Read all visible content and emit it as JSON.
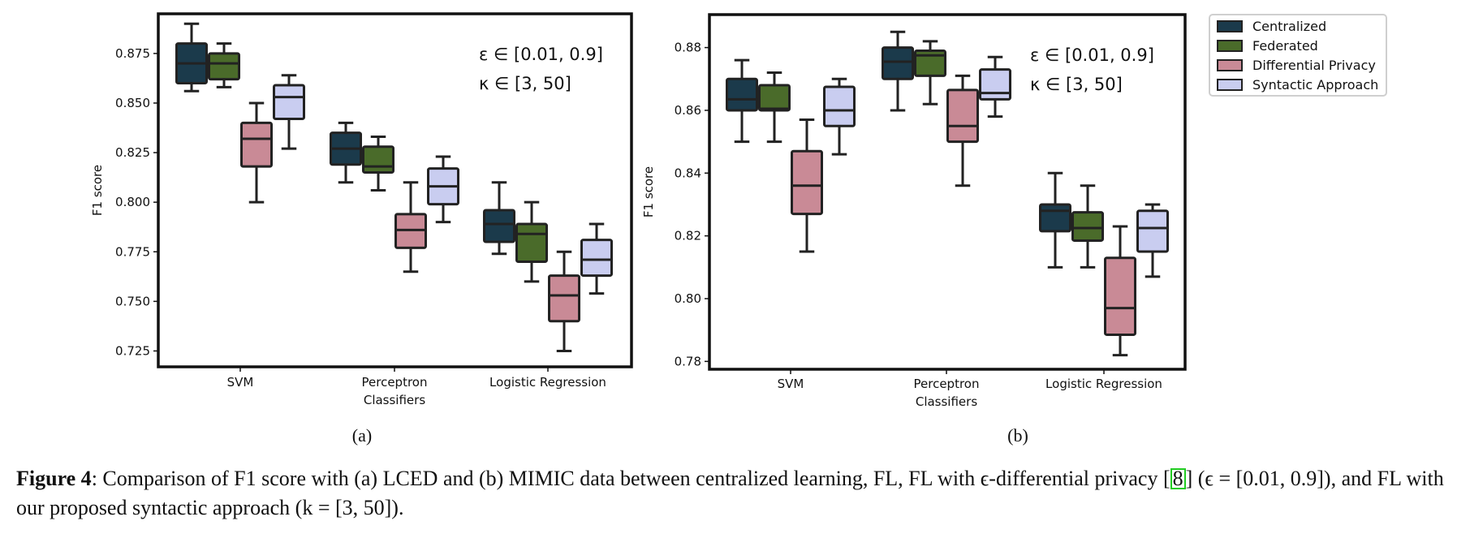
{
  "chart_data": [
    {
      "type": "box",
      "sublabel": "(a)",
      "ylabel": "F1 score",
      "ylim": [
        0.717,
        0.895
      ],
      "yticks": [
        "0.725",
        "0.750",
        "0.775",
        "0.800",
        "0.825",
        "0.850",
        "0.875"
      ],
      "categories": [
        "SVM",
        "Perceptron\nClassifiers",
        "Logistic Regression"
      ],
      "annotation": [
        "ε ∈ [0.01, 0.9]",
        "κ ∈ [3, 50]"
      ],
      "series": [
        {
          "name": "Centralized",
          "boxes": [
            {
              "min": 0.856,
              "q1": 0.86,
              "median": 0.87,
              "q3": 0.88,
              "max": 0.89
            },
            {
              "min": 0.81,
              "q1": 0.819,
              "median": 0.827,
              "q3": 0.835,
              "max": 0.84
            },
            {
              "min": 0.774,
              "q1": 0.78,
              "median": 0.789,
              "q3": 0.796,
              "max": 0.81
            }
          ]
        },
        {
          "name": "Federated",
          "boxes": [
            {
              "min": 0.858,
              "q1": 0.862,
              "median": 0.87,
              "q3": 0.875,
              "max": 0.88
            },
            {
              "min": 0.806,
              "q1": 0.815,
              "median": 0.818,
              "q3": 0.828,
              "max": 0.833
            },
            {
              "min": 0.76,
              "q1": 0.77,
              "median": 0.784,
              "q3": 0.789,
              "max": 0.8
            }
          ]
        },
        {
          "name": "Differential Privacy",
          "boxes": [
            {
              "min": 0.8,
              "q1": 0.818,
              "median": 0.832,
              "q3": 0.84,
              "max": 0.85
            },
            {
              "min": 0.765,
              "q1": 0.777,
              "median": 0.786,
              "q3": 0.794,
              "max": 0.81
            },
            {
              "min": 0.725,
              "q1": 0.74,
              "median": 0.753,
              "q3": 0.763,
              "max": 0.775
            }
          ]
        },
        {
          "name": "Syntactic Approach",
          "boxes": [
            {
              "min": 0.827,
              "q1": 0.842,
              "median": 0.853,
              "q3": 0.859,
              "max": 0.864
            },
            {
              "min": 0.79,
              "q1": 0.799,
              "median": 0.808,
              "q3": 0.817,
              "max": 0.823
            },
            {
              "min": 0.754,
              "q1": 0.763,
              "median": 0.771,
              "q3": 0.781,
              "max": 0.789
            }
          ]
        }
      ]
    },
    {
      "type": "box",
      "sublabel": "(b)",
      "ylabel": "F1 score",
      "ylim": [
        0.7775,
        0.8905
      ],
      "yticks": [
        "0.78",
        "0.80",
        "0.82",
        "0.84",
        "0.86",
        "0.88"
      ],
      "categories": [
        "SVM",
        "Perceptron\nClassifiers",
        "Logistic Regression"
      ],
      "annotation": [
        "ε ∈ [0.01, 0.9]",
        "κ ∈ [3, 50]"
      ],
      "series": [
        {
          "name": "Centralized",
          "boxes": [
            {
              "min": 0.85,
              "q1": 0.86,
              "median": 0.8635,
              "q3": 0.87,
              "max": 0.876
            },
            {
              "min": 0.86,
              "q1": 0.87,
              "median": 0.8755,
              "q3": 0.88,
              "max": 0.885
            },
            {
              "min": 0.81,
              "q1": 0.8215,
              "median": 0.828,
              "q3": 0.83,
              "max": 0.84
            }
          ]
        },
        {
          "name": "Federated",
          "boxes": [
            {
              "min": 0.85,
              "q1": 0.86,
              "median": 0.8605,
              "q3": 0.868,
              "max": 0.872
            },
            {
              "min": 0.862,
              "q1": 0.871,
              "median": 0.8775,
              "q3": 0.879,
              "max": 0.882
            },
            {
              "min": 0.81,
              "q1": 0.8185,
              "median": 0.8225,
              "q3": 0.8275,
              "max": 0.836
            }
          ]
        },
        {
          "name": "Differential Privacy",
          "boxes": [
            {
              "min": 0.815,
              "q1": 0.827,
              "median": 0.836,
              "q3": 0.847,
              "max": 0.857
            },
            {
              "min": 0.836,
              "q1": 0.85,
              "median": 0.855,
              "q3": 0.8665,
              "max": 0.871
            },
            {
              "min": 0.782,
              "q1": 0.7885,
              "median": 0.797,
              "q3": 0.813,
              "max": 0.823
            }
          ]
        },
        {
          "name": "Syntactic Approach",
          "boxes": [
            {
              "min": 0.846,
              "q1": 0.855,
              "median": 0.86,
              "q3": 0.8675,
              "max": 0.87
            },
            {
              "min": 0.858,
              "q1": 0.8635,
              "median": 0.8655,
              "q3": 0.873,
              "max": 0.877
            },
            {
              "min": 0.807,
              "q1": 0.815,
              "median": 0.8225,
              "q3": 0.828,
              "max": 0.83
            }
          ]
        }
      ]
    }
  ],
  "legend": {
    "items": [
      {
        "label": "Centralized",
        "color": "#1b3a4b"
      },
      {
        "label": "Federated",
        "color": "#4a6b2a"
      },
      {
        "label": "Differential Privacy",
        "color": "#c98a96"
      },
      {
        "label": "Syntactic Approach",
        "color": "#c9cdf0"
      }
    ]
  },
  "caption": {
    "label": "Figure 4",
    "text1": ": Comparison of F1 score with (a) LCED and (b) MIMIC data between centralized learning, FL, FL with ϵ-differential privacy [",
    "cite": "8",
    "text2": "] (ϵ = [0.01, 0.9]), and FL with our proposed syntactic approach (k = [3, 50])."
  }
}
